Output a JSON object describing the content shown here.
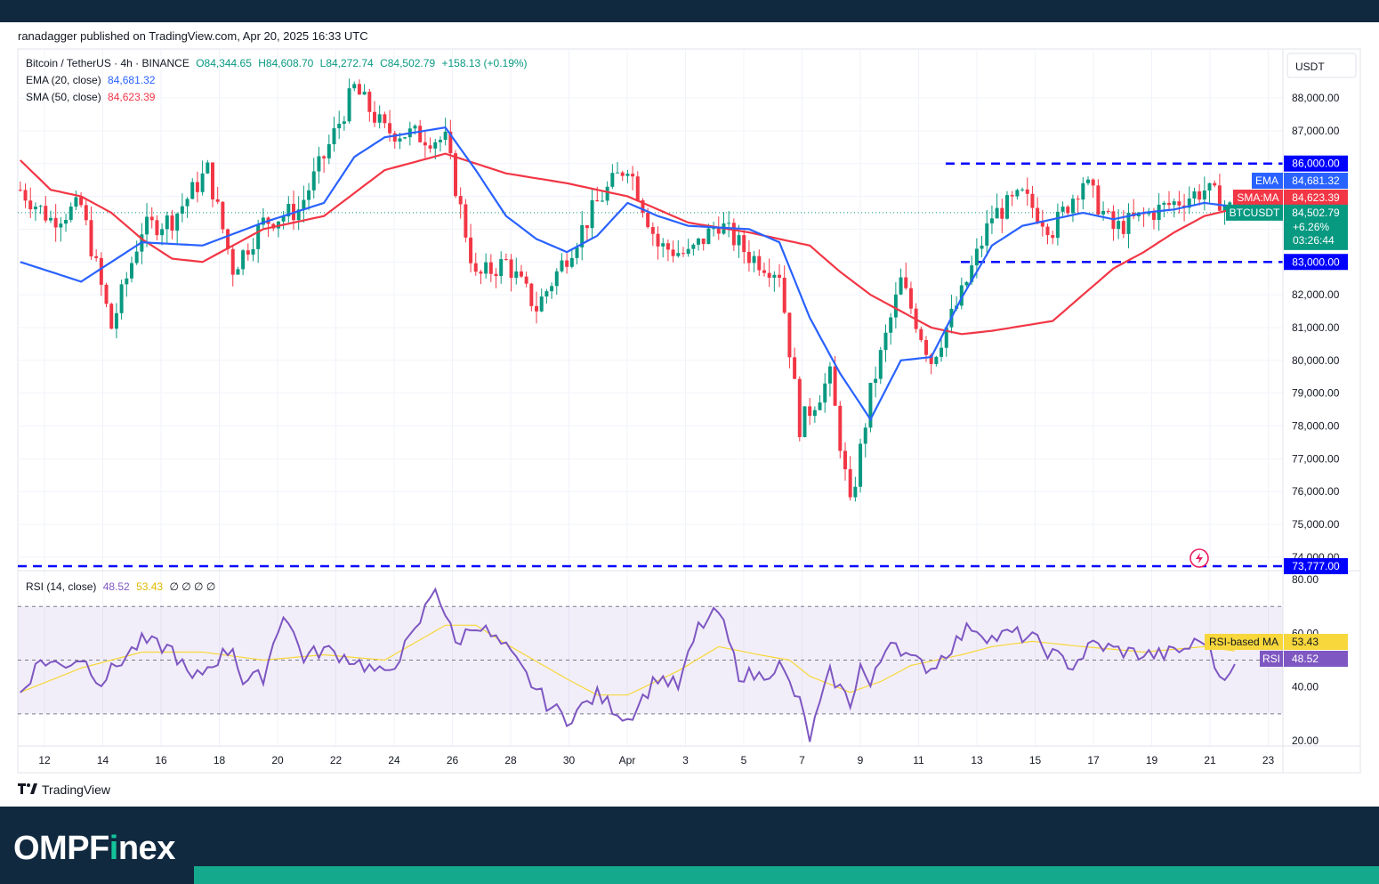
{
  "header": {
    "published": "ranadagger published on TradingView.com, Apr 20, 2025 16:33 UTC"
  },
  "legend": {
    "symbol": "Bitcoin / TetherUS · 4h · BINANCE",
    "open": "O84,344.65",
    "high": "H84,608.70",
    "low": "L84,272.74",
    "close": "C84,502.79",
    "change": "+158.13 (+0.19%)",
    "ema_label": "EMA (20, close)",
    "ema_value": "84,681.32",
    "sma_label": "SMA (50, close)",
    "sma_value": "84,623.39",
    "rsi_label": "RSI (14, close)",
    "rsi_value": "48.52",
    "rsi_ma_value": "53.43",
    "rsi_extra": "∅ ∅ ∅ ∅"
  },
  "colors": {
    "up": "#089981",
    "down": "#f23645",
    "ema": "#2962ff",
    "sma": "#f23645",
    "rsi": "#7e57c2",
    "rsi_ma": "#f7d73b",
    "level": "#0000ff",
    "brand_bg": "#10293f",
    "brand_accent": "#14a88c"
  },
  "chart_data": {
    "type": "candlestick",
    "currency": "USDT",
    "ylim": [
      73700,
      89000
    ],
    "y_ticks": [
      "88,000.00",
      "87,000.00",
      "86,000.00",
      "85,000.00",
      "84,000.00",
      "83,000.00",
      "82,000.00",
      "81,000.00",
      "80,000.00",
      "79,000.00",
      "78,000.00",
      "77,000.00",
      "76,000.00",
      "75,000.00",
      "74,000.00"
    ],
    "y_tick_values": [
      88000,
      87000,
      86000,
      85000,
      84000,
      83000,
      82000,
      81000,
      80000,
      79000,
      78000,
      77000,
      76000,
      75000,
      74000
    ],
    "x_ticks": [
      "12",
      "14",
      "16",
      "18",
      "20",
      "22",
      "24",
      "26",
      "28",
      "30",
      "Apr",
      "3",
      "5",
      "7",
      "9",
      "11",
      "13",
      "15",
      "17",
      "19",
      "21",
      "23"
    ],
    "levels": [
      {
        "value": 86000,
        "label": "86,000.00"
      },
      {
        "value": 83000,
        "label": "83,000.00"
      },
      {
        "value": 73777,
        "label": "73,777.00"
      }
    ],
    "price_tags": {
      "ema": {
        "label": "EMA",
        "value": "84,681.32"
      },
      "sma": {
        "label": "SMA:MA",
        "value": "84,623.39"
      },
      "last": {
        "label": "BTCUSDT",
        "value": "84,502.79",
        "change": "+6.26%",
        "countdown": "03:26:44"
      }
    },
    "price_anchors": [
      [
        0,
        85200
      ],
      [
        6,
        84300
      ],
      [
        12,
        84700
      ],
      [
        18,
        81000
      ],
      [
        24,
        84000
      ],
      [
        30,
        84300
      ],
      [
        37,
        85800
      ],
      [
        42,
        82800
      ],
      [
        48,
        84200
      ],
      [
        55,
        84600
      ],
      [
        60,
        86200
      ],
      [
        66,
        88300
      ],
      [
        72,
        87000
      ],
      [
        77,
        86900
      ],
      [
        84,
        86700
      ],
      [
        90,
        82500
      ],
      [
        96,
        83000
      ],
      [
        102,
        81600
      ],
      [
        108,
        83200
      ],
      [
        114,
        84800
      ],
      [
        120,
        86000
      ],
      [
        126,
        83500
      ],
      [
        132,
        83200
      ],
      [
        138,
        84200
      ],
      [
        144,
        83200
      ],
      [
        150,
        82700
      ],
      [
        154,
        78000
      ],
      [
        160,
        79500
      ],
      [
        164,
        75500
      ],
      [
        168,
        79000
      ],
      [
        174,
        82400
      ],
      [
        180,
        80000
      ],
      [
        186,
        82000
      ],
      [
        192,
        84400
      ],
      [
        198,
        85000
      ],
      [
        204,
        84000
      ],
      [
        210,
        85500
      ],
      [
        216,
        84000
      ],
      [
        222,
        84400
      ],
      [
        228,
        84800
      ],
      [
        234,
        85200
      ],
      [
        237,
        84900
      ],
      [
        240,
        84503
      ]
    ],
    "ema_anchors": [
      [
        0,
        83000
      ],
      [
        12,
        82400
      ],
      [
        24,
        83600
      ],
      [
        36,
        83500
      ],
      [
        48,
        84200
      ],
      [
        60,
        84800
      ],
      [
        66,
        86200
      ],
      [
        72,
        86800
      ],
      [
        84,
        87100
      ],
      [
        90,
        85800
      ],
      [
        96,
        84400
      ],
      [
        102,
        83700
      ],
      [
        108,
        83300
      ],
      [
        114,
        83800
      ],
      [
        120,
        84800
      ],
      [
        126,
        84400
      ],
      [
        132,
        84100
      ],
      [
        144,
        84000
      ],
      [
        150,
        83600
      ],
      [
        156,
        81300
      ],
      [
        162,
        79600
      ],
      [
        168,
        78200
      ],
      [
        174,
        80000
      ],
      [
        180,
        80100
      ],
      [
        186,
        81900
      ],
      [
        192,
        83500
      ],
      [
        198,
        84100
      ],
      [
        204,
        84300
      ],
      [
        210,
        84500
      ],
      [
        216,
        84300
      ],
      [
        222,
        84500
      ],
      [
        228,
        84600
      ],
      [
        234,
        84800
      ],
      [
        240,
        84681
      ]
    ],
    "sma_anchors": [
      [
        0,
        86100
      ],
      [
        6,
        85200
      ],
      [
        12,
        85000
      ],
      [
        18,
        84500
      ],
      [
        24,
        83700
      ],
      [
        30,
        83100
      ],
      [
        36,
        83000
      ],
      [
        48,
        84000
      ],
      [
        60,
        84400
      ],
      [
        72,
        85800
      ],
      [
        84,
        86300
      ],
      [
        96,
        85700
      ],
      [
        108,
        85400
      ],
      [
        120,
        85000
      ],
      [
        132,
        84200
      ],
      [
        144,
        83900
      ],
      [
        156,
        83500
      ],
      [
        162,
        82700
      ],
      [
        168,
        82000
      ],
      [
        174,
        81500
      ],
      [
        180,
        81000
      ],
      [
        186,
        80800
      ],
      [
        192,
        80900
      ],
      [
        204,
        81200
      ],
      [
        210,
        82000
      ],
      [
        216,
        82800
      ],
      [
        222,
        83300
      ],
      [
        228,
        83900
      ],
      [
        234,
        84400
      ],
      [
        240,
        84623
      ]
    ],
    "rsi": {
      "ylim": [
        18,
        82
      ],
      "y_ticks": [
        "80.00",
        "60.00",
        "40.00",
        "20.00"
      ],
      "y_tick_values": [
        80,
        60,
        40,
        20
      ],
      "bands": [
        70,
        30
      ],
      "mid": 50,
      "rsi_anchors": [
        [
          0,
          38
        ],
        [
          4,
          50
        ],
        [
          8,
          48
        ],
        [
          12,
          51
        ],
        [
          16,
          42
        ],
        [
          20,
          50
        ],
        [
          24,
          57
        ],
        [
          30,
          54
        ],
        [
          34,
          42
        ],
        [
          38,
          49
        ],
        [
          42,
          55
        ],
        [
          44,
          42
        ],
        [
          48,
          44
        ],
        [
          52,
          68
        ],
        [
          56,
          51
        ],
        [
          60,
          54
        ],
        [
          66,
          50
        ],
        [
          72,
          44
        ],
        [
          78,
          60
        ],
        [
          82,
          78
        ],
        [
          86,
          56
        ],
        [
          90,
          64
        ],
        [
          96,
          54
        ],
        [
          100,
          44
        ],
        [
          104,
          34
        ],
        [
          108,
          28
        ],
        [
          114,
          37
        ],
        [
          120,
          28
        ],
        [
          126,
          44
        ],
        [
          130,
          40
        ],
        [
          134,
          62
        ],
        [
          138,
          68
        ],
        [
          142,
          45
        ],
        [
          146,
          44
        ],
        [
          150,
          48
        ],
        [
          154,
          34
        ],
        [
          156,
          21
        ],
        [
          160,
          45
        ],
        [
          164,
          34
        ],
        [
          166,
          48
        ],
        [
          168,
          40
        ],
        [
          172,
          59
        ],
        [
          176,
          50
        ],
        [
          180,
          47
        ],
        [
          184,
          55
        ],
        [
          188,
          63
        ],
        [
          192,
          58
        ],
        [
          196,
          60
        ],
        [
          200,
          58
        ],
        [
          204,
          52
        ],
        [
          208,
          48
        ],
        [
          212,
          56
        ],
        [
          216,
          54
        ],
        [
          222,
          52
        ],
        [
          226,
          52
        ],
        [
          230,
          54
        ],
        [
          234,
          58
        ],
        [
          237,
          44
        ],
        [
          240,
          48.5
        ]
      ],
      "ma_anchors": [
        [
          0,
          38
        ],
        [
          12,
          47
        ],
        [
          24,
          53
        ],
        [
          36,
          53
        ],
        [
          48,
          50
        ],
        [
          60,
          52
        ],
        [
          72,
          50
        ],
        [
          84,
          63
        ],
        [
          90,
          63
        ],
        [
          96,
          56
        ],
        [
          108,
          43
        ],
        [
          114,
          37
        ],
        [
          120,
          37
        ],
        [
          130,
          46
        ],
        [
          138,
          55
        ],
        [
          146,
          52
        ],
        [
          152,
          50
        ],
        [
          156,
          44
        ],
        [
          164,
          38
        ],
        [
          170,
          42
        ],
        [
          176,
          48
        ],
        [
          186,
          52
        ],
        [
          192,
          55
        ],
        [
          200,
          57
        ],
        [
          210,
          55
        ],
        [
          222,
          53
        ],
        [
          234,
          55
        ],
        [
          240,
          53.43
        ]
      ],
      "price_tags": {
        "rsi_ma": {
          "label": "RSI-based MA",
          "value": "53.43"
        },
        "rsi": {
          "label": "RSI",
          "value": "48.52"
        }
      }
    }
  },
  "footer": {
    "tradingview": "TradingView",
    "brand_part1": "OMPF",
    "brand_part2": "i",
    "brand_part3": "nex"
  }
}
